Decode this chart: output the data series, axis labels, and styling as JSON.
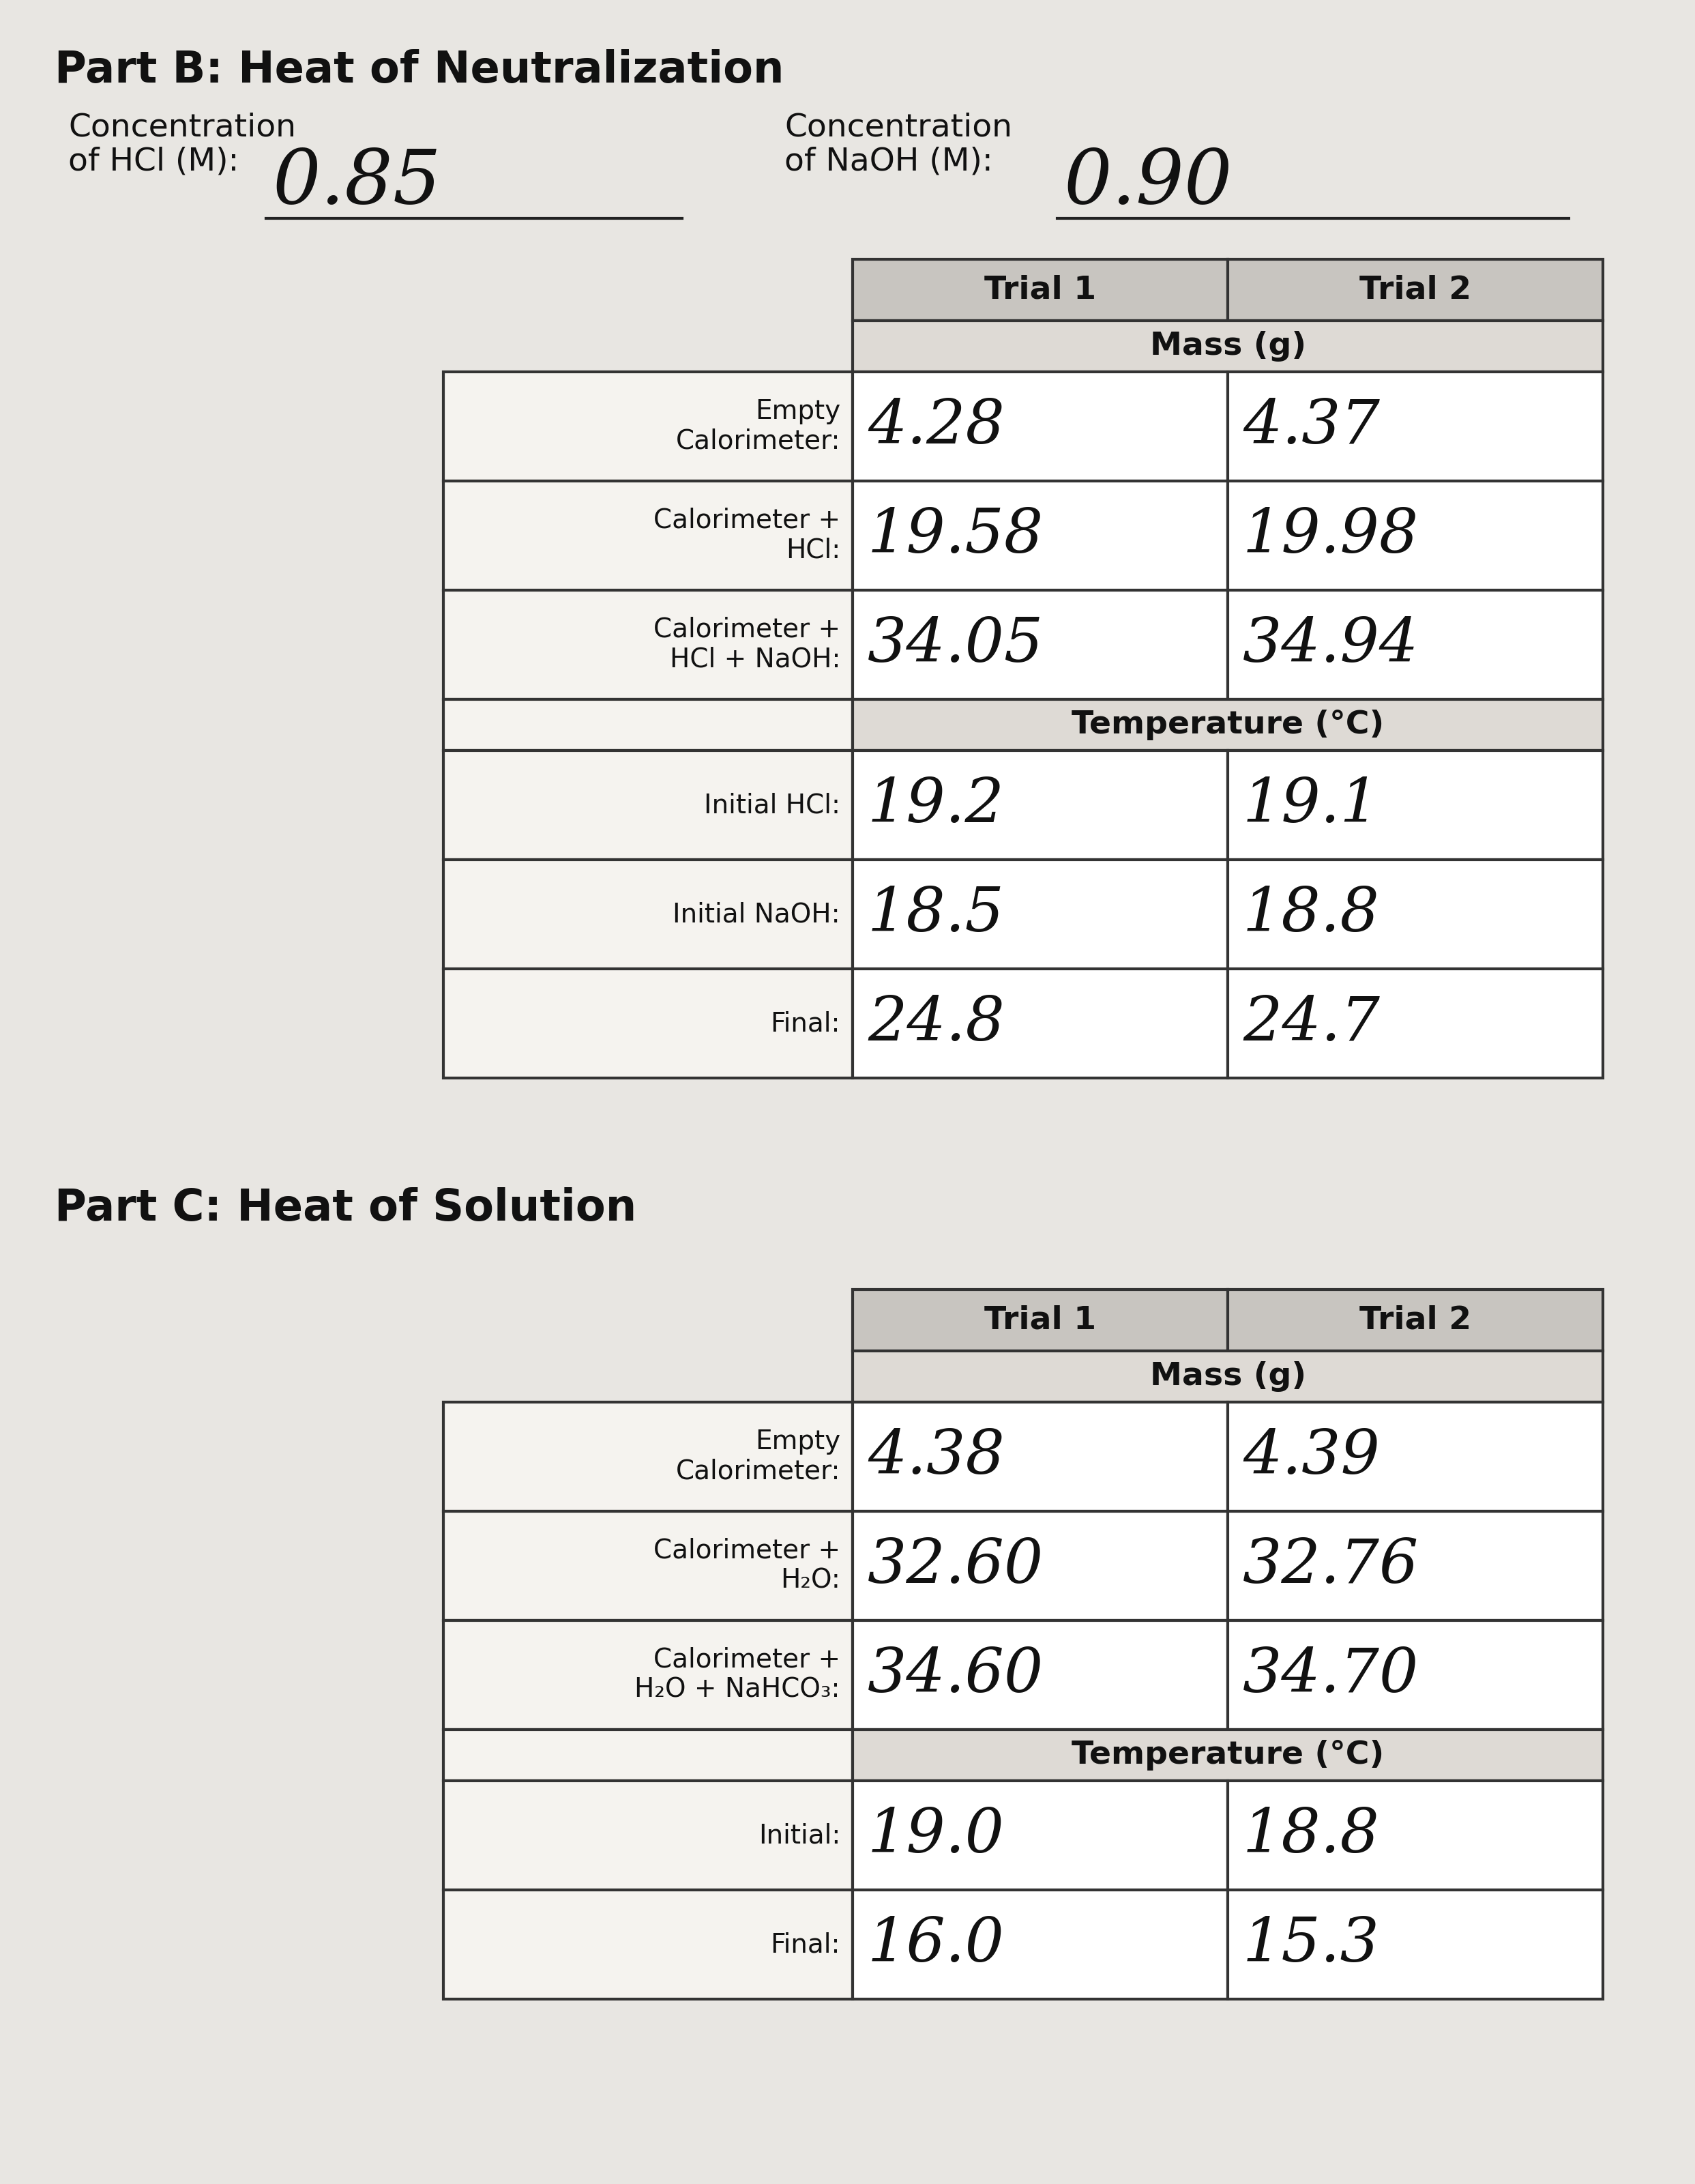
{
  "bg_color": "#e8e6e2",
  "paper_color": "#f2f0ed",
  "part_b_title": "Part B: Heat of Neutralization",
  "part_b_conc_hcl_value": "0.85",
  "part_b_conc_naoh_value": "0.90",
  "part_c_title": "Part C: Heat of Solution",
  "header_bg": "#c8c5c0",
  "subheader_bg": "#dedad5",
  "cell_bg": "#f5f3ef",
  "border_color": "#333333",
  "text_color": "#111111",
  "part_b_mass_rows": [
    [
      "Empty\nCalorimeter:",
      "4.28",
      "4.37"
    ],
    [
      "Calorimeter +\nHCl:",
      "19.58",
      "19.98"
    ],
    [
      "Calorimeter +\nHCl + NaOH:",
      "34.05",
      "34.94"
    ]
  ],
  "part_b_temp_rows": [
    [
      "Initial HCl:",
      "19.2",
      "19.1"
    ],
    [
      "Initial NaOH:",
      "18.5",
      "18.8"
    ],
    [
      "Final:",
      "24.8",
      "24.7"
    ]
  ],
  "part_c_mass_rows": [
    [
      "Empty\nCalorimeter:",
      "4.38",
      "4.39"
    ],
    [
      "Calorimeter +\nH₂O:",
      "32.60",
      "32.76"
    ],
    [
      "Calorimeter +\nH₂O + NaHCO₃:",
      "34.60",
      "34.70"
    ]
  ],
  "part_c_temp_rows": [
    [
      "Initial:",
      "19.0",
      "18.8"
    ],
    [
      "Final:",
      "16.0",
      "15.3"
    ]
  ]
}
